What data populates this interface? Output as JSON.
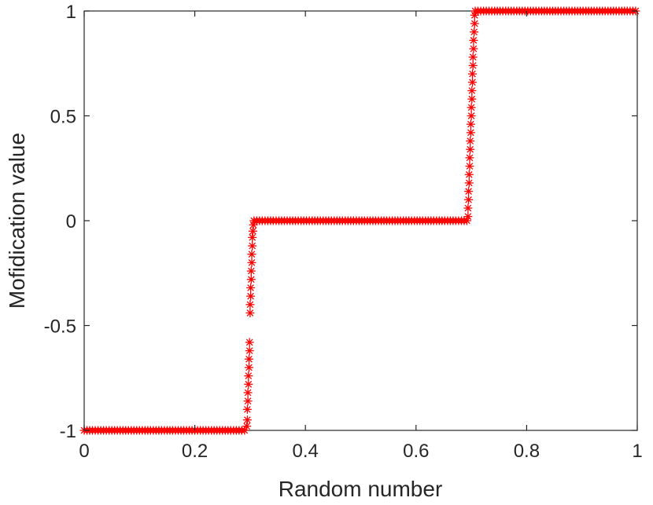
{
  "chart_data": {
    "type": "scatter",
    "title": "",
    "xlabel": "Random number",
    "ylabel": "Mofidication value",
    "xlim": [
      0,
      1
    ],
    "ylim": [
      -1,
      1
    ],
    "xticks": [
      0,
      0.2,
      0.4,
      0.6,
      0.8,
      1
    ],
    "xtick_labels": [
      "0",
      "0.2",
      "0.4",
      "0.6",
      "0.8",
      "1"
    ],
    "yticks": [
      -1,
      -0.5,
      0,
      0.5,
      1
    ],
    "ytick_labels": [
      "-1",
      "-0.5",
      "0",
      "0.5",
      "1"
    ],
    "grid": false,
    "legend": "none",
    "marker": "asterisk",
    "color": "#ff0000",
    "series": [
      {
        "segments": [
          {
            "kind": "flat",
            "x_from": 0.0,
            "x_to": 0.293,
            "y": -1,
            "step": 0.005
          },
          {
            "kind": "transition",
            "x_from": 0.293,
            "x_to": 0.307,
            "y_from": -1,
            "y_to": 0
          },
          {
            "kind": "flat",
            "x_from": 0.307,
            "x_to": 0.693,
            "y": 0,
            "step": 0.005
          },
          {
            "kind": "transition",
            "x_from": 0.693,
            "x_to": 0.707,
            "y_from": 0,
            "y_to": 1
          },
          {
            "kind": "flat",
            "x_from": 0.707,
            "x_to": 1.0,
            "y": 1,
            "step": 0.005
          }
        ],
        "transition_points": [
          [
            0.294,
            -0.98
          ],
          [
            0.295,
            -0.95
          ],
          [
            0.295,
            -0.9
          ],
          [
            0.296,
            -0.86
          ],
          [
            0.296,
            -0.82
          ],
          [
            0.297,
            -0.78
          ],
          [
            0.297,
            -0.74
          ],
          [
            0.298,
            -0.7
          ],
          [
            0.298,
            -0.66
          ],
          [
            0.299,
            -0.62
          ],
          [
            0.299,
            -0.58
          ],
          [
            0.3,
            -0.44
          ],
          [
            0.3,
            -0.4
          ],
          [
            0.301,
            -0.36
          ],
          [
            0.301,
            -0.32
          ],
          [
            0.302,
            -0.28
          ],
          [
            0.302,
            -0.24
          ],
          [
            0.303,
            -0.2
          ],
          [
            0.303,
            -0.16
          ],
          [
            0.304,
            -0.12
          ],
          [
            0.304,
            -0.08
          ],
          [
            0.305,
            -0.05
          ],
          [
            0.306,
            -0.02
          ],
          [
            0.694,
            0.02
          ],
          [
            0.694,
            0.06
          ],
          [
            0.695,
            0.1
          ],
          [
            0.695,
            0.14
          ],
          [
            0.696,
            0.18
          ],
          [
            0.696,
            0.22
          ],
          [
            0.697,
            0.26
          ],
          [
            0.697,
            0.3
          ],
          [
            0.698,
            0.34
          ],
          [
            0.698,
            0.38
          ],
          [
            0.699,
            0.42
          ],
          [
            0.699,
            0.46
          ],
          [
            0.7,
            0.5
          ],
          [
            0.7,
            0.54
          ],
          [
            0.701,
            0.58
          ],
          [
            0.701,
            0.62
          ],
          [
            0.702,
            0.66
          ],
          [
            0.702,
            0.7
          ],
          [
            0.703,
            0.74
          ],
          [
            0.703,
            0.78
          ],
          [
            0.704,
            0.82
          ],
          [
            0.704,
            0.86
          ],
          [
            0.705,
            0.9
          ],
          [
            0.706,
            0.94
          ],
          [
            0.706,
            0.98
          ]
        ]
      }
    ]
  }
}
